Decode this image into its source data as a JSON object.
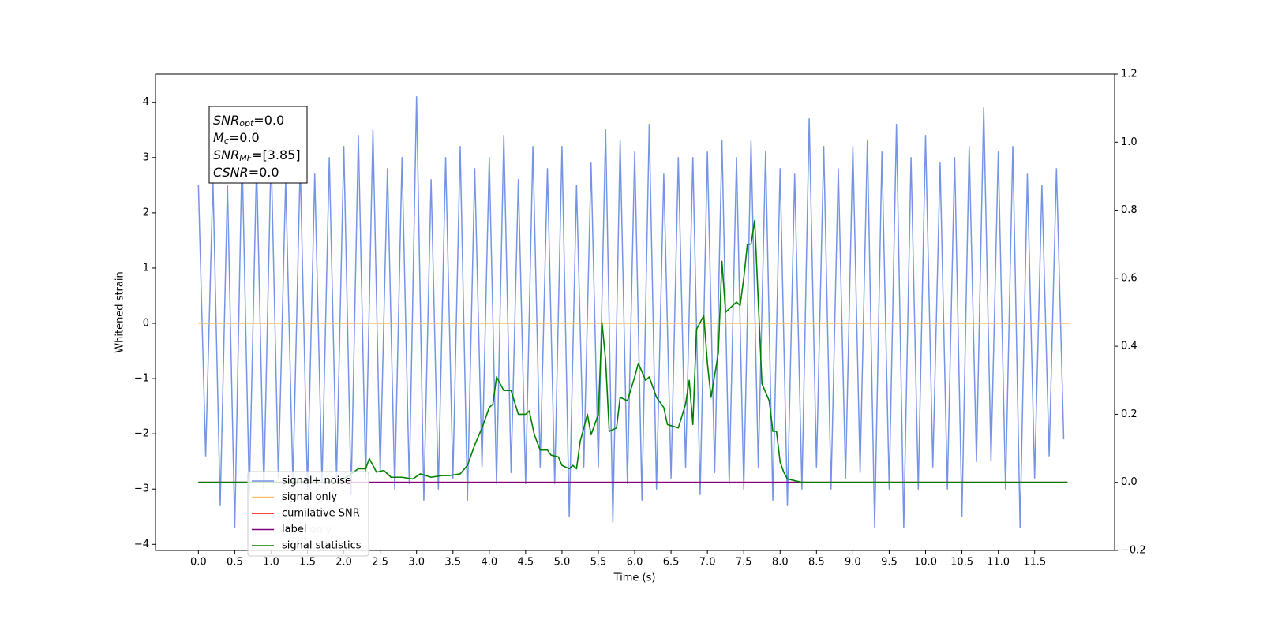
{
  "chart_data": {
    "type": "line",
    "xlabel": "Time (s)",
    "ylabel": "Whitened strain",
    "xlim": [
      -0.59,
      12.6
    ],
    "ylim": [
      -4.11,
      4.51
    ],
    "y2lim": [
      -0.2,
      1.2
    ],
    "xticks": [
      {
        "value": 0,
        "label": "0.0"
      },
      {
        "value": 0.5,
        "label": "0.5"
      },
      {
        "value": 1,
        "label": "1.0"
      },
      {
        "value": 1.5,
        "label": "1.5"
      },
      {
        "value": 2,
        "label": "2.0"
      },
      {
        "value": 2.5,
        "label": "2.5"
      },
      {
        "value": 3,
        "label": "3.0"
      },
      {
        "value": 3.5,
        "label": "3.5"
      },
      {
        "value": 4,
        "label": "4.0"
      },
      {
        "value": 4.5,
        "label": "4.5"
      },
      {
        "value": 5,
        "label": "5.0"
      },
      {
        "value": 5.5,
        "label": "5.5"
      },
      {
        "value": 6,
        "label": "6.0"
      },
      {
        "value": 6.5,
        "label": "6.5"
      },
      {
        "value": 7,
        "label": "7.0"
      },
      {
        "value": 7.5,
        "label": "7.5"
      },
      {
        "value": 8,
        "label": "8.0"
      },
      {
        "value": 8.5,
        "label": "8.5"
      },
      {
        "value": 9,
        "label": "9.0"
      },
      {
        "value": 9.5,
        "label": "9.5"
      },
      {
        "value": 10,
        "label": "10.0"
      },
      {
        "value": 10.5,
        "label": "10.5"
      },
      {
        "value": 11,
        "label": "11.0"
      },
      {
        "value": 11.5,
        "label": "11.5"
      }
    ],
    "yticks": [
      {
        "value": -4,
        "label": "−4"
      },
      {
        "value": -3,
        "label": "−3"
      },
      {
        "value": -2,
        "label": "−2"
      },
      {
        "value": -1,
        "label": "−1"
      },
      0,
      1,
      2,
      3,
      4
    ],
    "y2ticks": [
      {
        "value": -0.2,
        "label": "−0.2"
      },
      {
        "value": 0,
        "label": "0.0"
      },
      0.2,
      0.4,
      0.6,
      0.8,
      {
        "value": 1,
        "label": "1.0"
      },
      1.2
    ],
    "legend_loc": "lower left",
    "legend_overlap_text": "label only",
    "annotations": [
      {
        "symbol": "SNR",
        "subscript": "opt",
        "text": "=0.0"
      },
      {
        "symbol": "M",
        "subscript": "c",
        "text": "=0.0"
      },
      {
        "symbol": "SNR",
        "subscript": "MF",
        "text": "=[3.85]"
      },
      {
        "symbol": "CSNR",
        "subscript": "",
        "text": "=0.0"
      }
    ],
    "series": [
      {
        "name": "signal+ noise",
        "color": "#7694e6",
        "axis": "y",
        "x": [
          0,
          0.1,
          0.2,
          0.3,
          0.4,
          0.5,
          0.6,
          0.7,
          0.8,
          0.9,
          1,
          1.1,
          1.2,
          1.3,
          1.4,
          1.5,
          1.6,
          1.7,
          1.8,
          1.9,
          2,
          2.1,
          2.2,
          2.3,
          2.4,
          2.5,
          2.6,
          2.7,
          2.8,
          2.9,
          3,
          3.1,
          3.2,
          3.3,
          3.4,
          3.5,
          3.6,
          3.7,
          3.8,
          3.9,
          4,
          4.1,
          4.2,
          4.3,
          4.4,
          4.5,
          4.6,
          4.7,
          4.8,
          4.9,
          5,
          5.1,
          5.2,
          5.3,
          5.4,
          5.5,
          5.6,
          5.7,
          5.8,
          5.9,
          6,
          6.1,
          6.2,
          6.3,
          6.4,
          6.5,
          6.6,
          6.7,
          6.8,
          6.9,
          7,
          7.1,
          7.2,
          7.3,
          7.4,
          7.5,
          7.6,
          7.7,
          7.8,
          7.9,
          8,
          8.1,
          8.2,
          8.3,
          8.4,
          8.5,
          8.6,
          8.7,
          8.8,
          8.9,
          9,
          9.1,
          9.2,
          9.3,
          9.4,
          9.5,
          9.6,
          9.7,
          9.8,
          9.9,
          10,
          10.1,
          10.2,
          10.3,
          10.4,
          10.5,
          10.6,
          10.7,
          10.8,
          10.9,
          11,
          11.1,
          11.2,
          11.3,
          11.4,
          11.5,
          11.6,
          11.7,
          11.8,
          11.9
        ],
        "values": [
          2.5,
          -2.4,
          2.6,
          -3.3,
          2.5,
          -3.7,
          3.1,
          -3.1,
          2.9,
          -3.0,
          3.1,
          -2.8,
          2.6,
          -2.9,
          2.9,
          -3.0,
          2.7,
          -2.9,
          3.0,
          -2.8,
          3.2,
          -3.1,
          3.4,
          -2.8,
          3.5,
          -2.7,
          2.8,
          -3.0,
          3.0,
          -2.9,
          4.1,
          -3.2,
          2.6,
          -3.0,
          3.0,
          -2.8,
          3.2,
          -3.2,
          2.8,
          -2.6,
          3.0,
          -2.9,
          3.4,
          -2.7,
          2.6,
          -2.9,
          3.2,
          -2.6,
          2.8,
          -2.9,
          3.2,
          -3.5,
          2.5,
          -2.6,
          2.9,
          -2.6,
          3.5,
          -3.6,
          3.3,
          -2.9,
          3.1,
          -3.2,
          3.6,
          -3.0,
          2.7,
          -2.8,
          3.0,
          -2.6,
          3.0,
          -3.1,
          3.1,
          -2.7,
          3.3,
          -2.9,
          3.0,
          -3.0,
          3.3,
          -2.6,
          3.1,
          -3.2,
          2.8,
          -3.3,
          2.7,
          -3.0,
          3.7,
          -2.6,
          3.2,
          -3.0,
          2.8,
          -2.8,
          3.2,
          -2.7,
          3.3,
          -3.7,
          3.1,
          -3.0,
          3.6,
          -3.7,
          3.0,
          -3.0,
          3.4,
          -2.6,
          2.9,
          -3.0,
          3.0,
          -3.5,
          3.2,
          -2.5,
          3.9,
          -2.5,
          3.1,
          -3.0,
          3.2,
          -3.7,
          2.7,
          -2.8,
          2.5,
          -2.4,
          2.8,
          -2.1
        ]
      },
      {
        "name": "signal only",
        "color": "#ffbf66",
        "axis": "y",
        "x": [
          0,
          11.98
        ],
        "values": [
          0,
          0
        ]
      },
      {
        "name": "cumilative SNR",
        "color": "#ff0000",
        "axis": "y2",
        "x": [
          0,
          11.95
        ],
        "values": [
          0,
          0
        ]
      },
      {
        "name": "label",
        "color": "#800080",
        "axis": "y2",
        "x": [
          0,
          11.95
        ],
        "values": [
          0,
          0
        ]
      },
      {
        "name": "signal statistics",
        "color": "#008000",
        "axis": "y2",
        "x": [
          0,
          1.9,
          2.0,
          2.2,
          2.3,
          2.35,
          2.45,
          2.55,
          2.65,
          2.8,
          2.95,
          3.05,
          3.2,
          3.35,
          3.45,
          3.6,
          3.7,
          3.8,
          3.9,
          4.0,
          4.05,
          4.1,
          4.2,
          4.3,
          4.4,
          4.5,
          4.55,
          4.62,
          4.7,
          4.8,
          4.85,
          4.95,
          5.0,
          5.1,
          5.15,
          5.2,
          5.25,
          5.35,
          5.4,
          5.5,
          5.55,
          5.6,
          5.65,
          5.75,
          5.8,
          5.9,
          6.0,
          6.05,
          6.15,
          6.2,
          6.3,
          6.4,
          6.45,
          6.6,
          6.7,
          6.75,
          6.8,
          6.85,
          6.95,
          7.0,
          7.05,
          7.15,
          7.2,
          7.25,
          7.4,
          7.45,
          7.5,
          7.55,
          7.6,
          7.65,
          7.75,
          7.85,
          7.9,
          7.95,
          8.0,
          8.05,
          8.1,
          8.2,
          8.3,
          11.95
        ],
        "values": [
          0,
          0,
          0.01,
          0.04,
          0.04,
          0.07,
          0.03,
          0.035,
          0.015,
          0.015,
          0.01,
          0.025,
          0.015,
          0.02,
          0.02,
          0.025,
          0.05,
          0.11,
          0.16,
          0.22,
          0.23,
          0.31,
          0.27,
          0.27,
          0.2,
          0.2,
          0.21,
          0.14,
          0.095,
          0.095,
          0.08,
          0.075,
          0.05,
          0.04,
          0.05,
          0.04,
          0.12,
          0.2,
          0.14,
          0.2,
          0.47,
          0.36,
          0.15,
          0.16,
          0.25,
          0.24,
          0.31,
          0.35,
          0.3,
          0.31,
          0.25,
          0.22,
          0.17,
          0.16,
          0.23,
          0.3,
          0.17,
          0.45,
          0.49,
          0.35,
          0.25,
          0.38,
          0.65,
          0.5,
          0.53,
          0.52,
          0.6,
          0.7,
          0.7,
          0.77,
          0.29,
          0.24,
          0.15,
          0.15,
          0.06,
          0.03,
          0.01,
          0.005,
          0,
          0
        ]
      }
    ]
  }
}
